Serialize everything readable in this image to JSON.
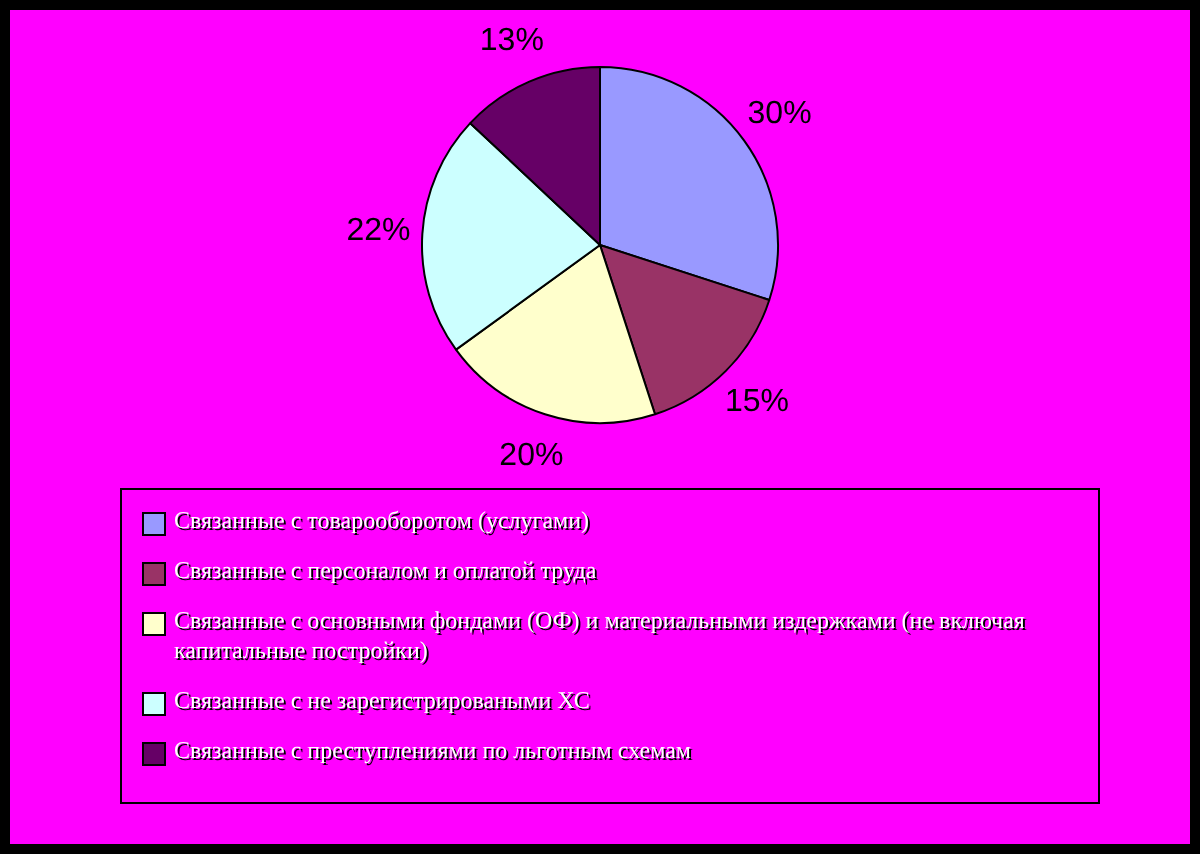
{
  "chart_data": {
    "type": "pie",
    "categories": [
      "Связанные с товарооборотом (услугами)",
      "Связанные с персоналом и оплатой труда",
      "Связанные с основными фондами (ОФ) и материальными издержками (не включая капитальные постройки)",
      "Связанные с не зарегистрироваными ХС",
      "Связанные с преступлениями по льготным схемам"
    ],
    "values": [
      30,
      15,
      20,
      22,
      13
    ],
    "colors": [
      "#9999ff",
      "#993366",
      "#ffffcc",
      "#ccffff",
      "#660066"
    ],
    "value_labels": [
      "30%",
      "15%",
      "20%",
      "22%",
      "13%"
    ],
    "legend": "bottom"
  }
}
